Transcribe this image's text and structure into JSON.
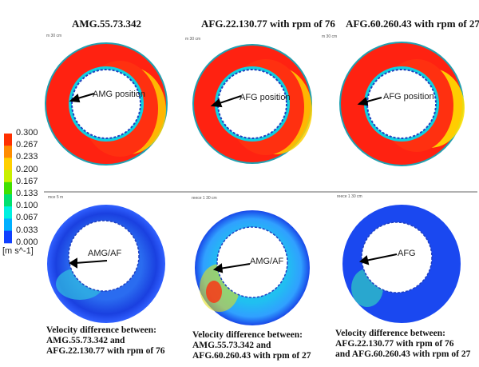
{
  "titles": [
    "AMG.55.73.342",
    "AFG.22.130.77 with rpm of 76",
    "AFG.60.260.43 with rpm of 27"
  ],
  "scale_labels": [
    "m 30 cm",
    "m 30 cm",
    "m 30 cm",
    "mce 5 m",
    "reece 1 30 cm",
    "reece 1 30 cm"
  ],
  "annotations_top": [
    "AMG position",
    "AFG position",
    "AFG position"
  ],
  "annotations_bottom": [
    "AMG/AF",
    "AMG/AF",
    "AFG"
  ],
  "captions": [
    [
      "Velocity difference between:",
      "AMG.55.73.342  and",
      "AFG.22.130.77 with rpm of 76"
    ],
    [
      "Velocity difference between:",
      "AMG.55.73.342  and",
      "AFG.60.260.43 with rpm of 27"
    ],
    [
      "Velocity difference between:",
      "AFG.22.130.77 with rpm of 76",
      "and AFG.60.260.43 with rpm of 27"
    ]
  ],
  "colorbar": {
    "ticks": [
      "0.300",
      "0.267",
      "0.233",
      "0.200",
      "0.167",
      "0.133",
      "0.100",
      "0.067",
      "0.033",
      "0.000"
    ],
    "unit": "[m s^-1]",
    "colors": [
      "#ff3000",
      "#ff8c00",
      "#ffd000",
      "#c8f000",
      "#40e000",
      "#00e070",
      "#00f0e0",
      "#00b0ff",
      "#1040ff"
    ]
  }
}
